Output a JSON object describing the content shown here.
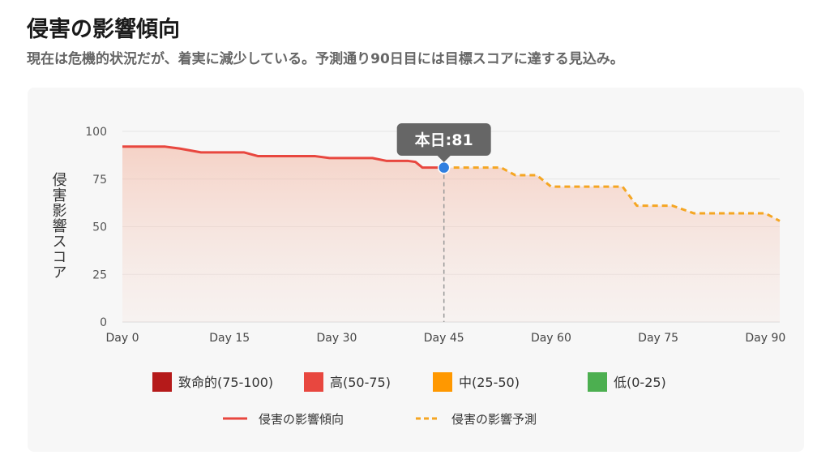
{
  "header": {
    "title": "侵害の影響傾向",
    "subtitle": "現在は危機的状況だが、着実に減少している。予測通り90日目には目標スコアに達する見込み。"
  },
  "chart_data": {
    "type": "line",
    "ylabel": "侵害影響スコア",
    "ylim": [
      0,
      100
    ],
    "y_ticks": [
      "0",
      "25",
      "50",
      "75",
      "100"
    ],
    "xlim": [
      0,
      92
    ],
    "x_ticks": [
      {
        "label": "Day 0",
        "x": 0
      },
      {
        "label": "Day 15",
        "x": 15
      },
      {
        "label": "Day 30",
        "x": 30
      },
      {
        "label": "Day 45",
        "x": 45
      },
      {
        "label": "Day 60",
        "x": 60
      },
      {
        "label": "Day 75",
        "x": 75
      },
      {
        "label": "Day 90",
        "x": 90
      }
    ],
    "grid": true,
    "series": [
      {
        "name": "侵害の影響傾向",
        "style": "solid",
        "color": "#e8473f",
        "points": [
          [
            0,
            92
          ],
          [
            6,
            92
          ],
          [
            7,
            91.5
          ],
          [
            8,
            91
          ],
          [
            11,
            89
          ],
          [
            17,
            89
          ],
          [
            19,
            87
          ],
          [
            27,
            87
          ],
          [
            29,
            86
          ],
          [
            35,
            86
          ],
          [
            37,
            84.5
          ],
          [
            40,
            84.5
          ],
          [
            41,
            84
          ],
          [
            42,
            81
          ],
          [
            45,
            81
          ]
        ]
      },
      {
        "name": "侵害の影響予測",
        "style": "dashed",
        "color": "#f5a623",
        "points": [
          [
            45,
            81
          ],
          [
            53,
            81
          ],
          [
            55,
            77
          ],
          [
            58,
            77
          ],
          [
            60,
            71
          ],
          [
            70,
            71
          ],
          [
            72,
            61
          ],
          [
            77,
            61
          ],
          [
            80,
            57
          ],
          [
            90,
            57
          ],
          [
            92,
            53
          ]
        ]
      }
    ],
    "today_marker": {
      "x": 45,
      "y": 81,
      "label": "本日:81"
    },
    "legend": {
      "placement": "bottom",
      "severity": [
        {
          "label": "致命的(75-100)",
          "color": "#b51a1a"
        },
        {
          "label": "高(50-75)",
          "color": "#e8473f"
        },
        {
          "label": "中(25-50)",
          "color": "#ff9800"
        },
        {
          "label": "低(0-25)",
          "color": "#4caf50"
        }
      ],
      "lines": [
        {
          "label": "侵害の影響傾向",
          "style": "solid",
          "color": "#e8473f"
        },
        {
          "label": "侵害の影響予測",
          "style": "dashed",
          "color": "#f5a623"
        }
      ]
    }
  }
}
